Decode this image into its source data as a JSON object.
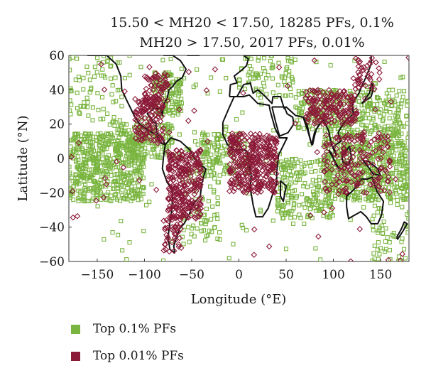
{
  "chart_data": {
    "type": "scatter",
    "title_lines": [
      "15.50 < MH20 < 17.50, 18285 PFs, 0.1%",
      "MH20 > 17.50, 2017 PFs, 0.01%"
    ],
    "xlabel": "Longitude (°E)",
    "ylabel": "Latitude (°N)",
    "xlim": [
      -180,
      180
    ],
    "ylim": [
      -60,
      60
    ],
    "xticks": [
      -150,
      -100,
      -50,
      0,
      50,
      100,
      150
    ],
    "yticks": [
      -60,
      -40,
      -20,
      0,
      20,
      40,
      60
    ],
    "grid": false,
    "legend_position": "bottom-left",
    "series": [
      {
        "name": "Top 0.1% PFs",
        "color": "#7ab540",
        "marker": "square",
        "clusters": [
          {
            "lon": [
              -180,
              -100
            ],
            "lat": [
              -25,
              15
            ],
            "n": 500
          },
          {
            "lon": [
              -130,
              -70
            ],
            "lat": [
              0,
              20
            ],
            "n": 160
          },
          {
            "lon": [
              -90,
              -60
            ],
            "lat": [
              25,
              50
            ],
            "n": 120
          },
          {
            "lon": [
              -180,
              -120
            ],
            "lat": [
              20,
              60
            ],
            "n": 70
          },
          {
            "lon": [
              -60,
              -20
            ],
            "lat": [
              -50,
              10
            ],
            "n": 90
          },
          {
            "lon": [
              -40,
              10
            ],
            "lat": [
              -10,
              15
            ],
            "n": 110
          },
          {
            "lon": [
              0,
              60
            ],
            "lat": [
              35,
              60
            ],
            "n": 70
          },
          {
            "lon": [
              40,
              100
            ],
            "lat": [
              -35,
              0
            ],
            "n": 200
          },
          {
            "lon": [
              60,
              180
            ],
            "lat": [
              15,
              40
            ],
            "n": 300
          },
          {
            "lon": [
              90,
              180
            ],
            "lat": [
              -25,
              15
            ],
            "n": 500
          },
          {
            "lon": [
              140,
              180
            ],
            "lat": [
              -60,
              -25
            ],
            "n": 50
          },
          {
            "lon": [
              -180,
              180
            ],
            "lat": [
              -60,
              60
            ],
            "n": 160
          }
        ]
      },
      {
        "name": "Top 0.01% PFs",
        "color": "#8b1a38",
        "marker": "square",
        "clusters": [
          {
            "lon": [
              -75,
              -40
            ],
            "lat": [
              -35,
              5
            ],
            "n": 280
          },
          {
            "lon": [
              -110,
              -80
            ],
            "lat": [
              10,
              35
            ],
            "n": 120
          },
          {
            "lon": [
              -100,
              -75
            ],
            "lat": [
              30,
              50
            ],
            "n": 70
          },
          {
            "lon": [
              -10,
              40
            ],
            "lat": [
              -20,
              15
            ],
            "n": 350
          },
          {
            "lon": [
              70,
              125
            ],
            "lat": [
              20,
              40
            ],
            "n": 180
          },
          {
            "lon": [
              90,
              160
            ],
            "lat": [
              -20,
              15
            ],
            "n": 170
          },
          {
            "lon": [
              -80,
              -60
            ],
            "lat": [
              -55,
              -35
            ],
            "n": 40
          },
          {
            "lon": [
              120,
              150
            ],
            "lat": [
              40,
              60
            ],
            "n": 40
          },
          {
            "lon": [
              -180,
              180
            ],
            "lat": [
              -60,
              60
            ],
            "n": 60
          }
        ]
      }
    ],
    "annotations": [
      "coastline outlines of continents drawn in black"
    ]
  }
}
